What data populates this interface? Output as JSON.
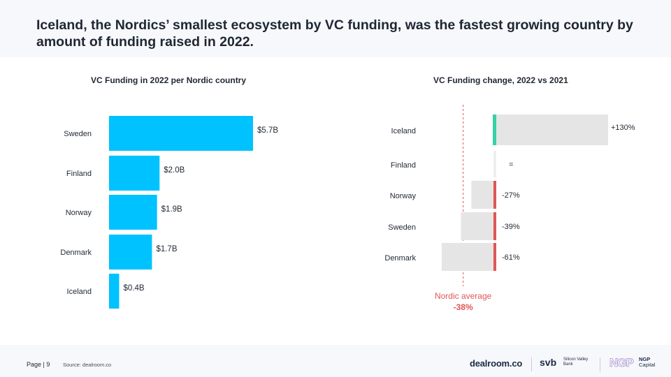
{
  "headline": "Iceland, the Nordics’ smallest ecosystem by VC funding, was the fastest growing country by amount of funding raised in 2022.",
  "chart_data": [
    {
      "type": "bar",
      "orientation": "horizontal",
      "title": "VC Funding in 2022 per Nordic country",
      "unit": "USD billions",
      "categories": [
        "Sweden",
        "Finland",
        "Norway",
        "Denmark",
        "Iceland"
      ],
      "values": [
        5.7,
        2.0,
        1.9,
        1.7,
        0.4
      ],
      "labels": [
        "$5.7B",
        "$2.0B",
        "$1.9B",
        "$1.7B",
        "$0.4B"
      ],
      "color": "#00c2ff",
      "xlim": [
        0,
        5.7
      ]
    },
    {
      "type": "bar",
      "orientation": "horizontal",
      "title": "VC Funding change, 2022 vs 2021",
      "unit": "percent",
      "categories": [
        "Iceland",
        "Finland",
        "Norway",
        "Sweden",
        "Denmark"
      ],
      "values": [
        130,
        0,
        -27,
        -39,
        -61
      ],
      "labels": [
        "+130%",
        "=",
        "-27%",
        "-39%",
        "-61%"
      ],
      "bar_color": "#e5e5e5",
      "positive_color": "#36d1a8",
      "negative_color": "#e05656",
      "reference": {
        "label": "Nordic average",
        "value_label": "-38%",
        "value": -38,
        "color": "#e05656"
      }
    }
  ],
  "footer": {
    "page_label": "Page | 9",
    "source": "Source: dealroom.co",
    "logos": {
      "dealroom": "dealroom.co",
      "svb": "svb",
      "svb_name": "Silicon Valley Bank",
      "ngp": "NGP",
      "ngp_name_1": "NGP",
      "ngp_name_2": "Capital"
    }
  }
}
